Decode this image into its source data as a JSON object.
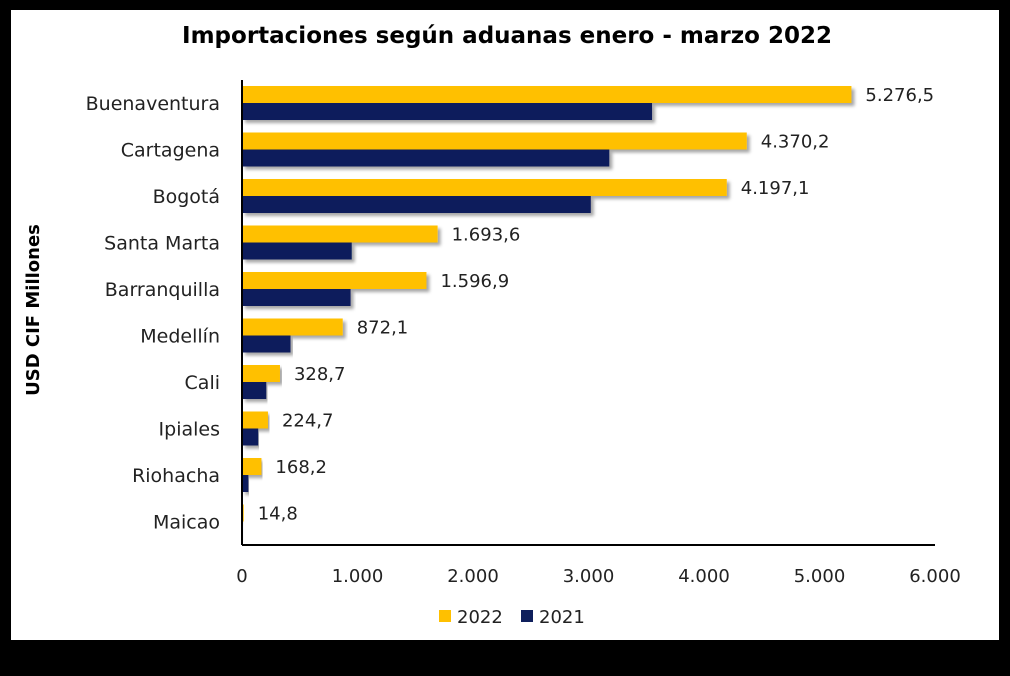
{
  "chart_data": {
    "type": "bar",
    "orientation": "horizontal",
    "title": "Importaciones según aduanas enero - marzo 2022",
    "xlabel": "",
    "ylabel": "USD CIF Millones",
    "xlim": [
      0,
      6000
    ],
    "xticks": [
      0,
      1000,
      2000,
      3000,
      4000,
      5000,
      6000
    ],
    "xtick_labels": [
      "0",
      "1.000",
      "2.000",
      "3.000",
      "4.000",
      "5.000",
      "6.000"
    ],
    "grid": false,
    "legend_position": "bottom",
    "categories": [
      "Buenaventura",
      "Cartagena",
      "Bogotá",
      "Santa Marta",
      "Barranquilla",
      "Medellín",
      "Cali",
      "Ipiales",
      "Riohacha",
      "Maicao"
    ],
    "series": [
      {
        "name": "2022",
        "color": "#FFC000",
        "values": [
          5276.5,
          4370.2,
          4197.1,
          1693.6,
          1596.9,
          872.1,
          328.7,
          224.7,
          168.2,
          14.8
        ],
        "labels": [
          "5.276,5",
          "4.370,2",
          "4.197,1",
          "1.693,6",
          "1.596,9",
          "872,1",
          "328,7",
          "224,7",
          "168,2",
          "14,8"
        ]
      },
      {
        "name": "2021",
        "color": "#0F1F5C",
        "values": [
          3550,
          3180,
          3020,
          950,
          940,
          420,
          210,
          140,
          55,
          5
        ]
      }
    ]
  }
}
